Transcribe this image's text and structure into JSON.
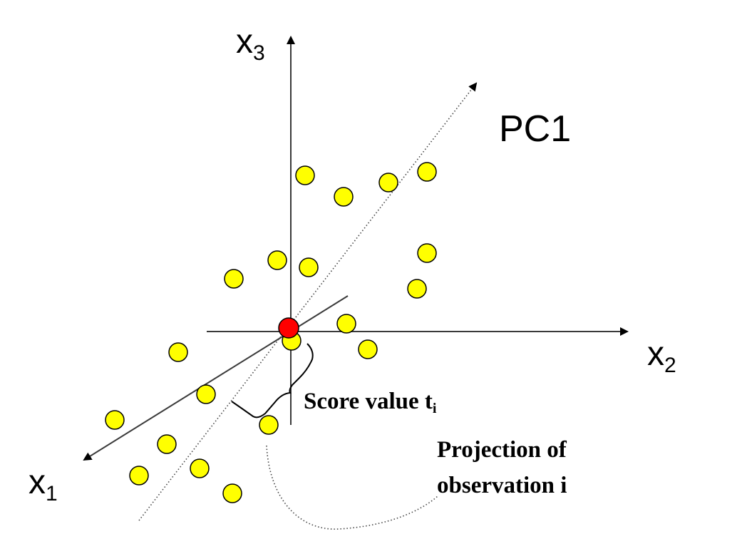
{
  "labels": {
    "x1_main": "x",
    "x1_sub": "1",
    "x2_main": "x",
    "x2_sub": "2",
    "x3_main": "x",
    "x3_sub": "3",
    "pc1": "PC1",
    "score_main": "Score value t",
    "score_sub": "i",
    "projection_line1": "Projection of",
    "projection_line2": "observation i"
  },
  "colors": {
    "observation": "#ffff00",
    "center": "#ff0000"
  }
}
